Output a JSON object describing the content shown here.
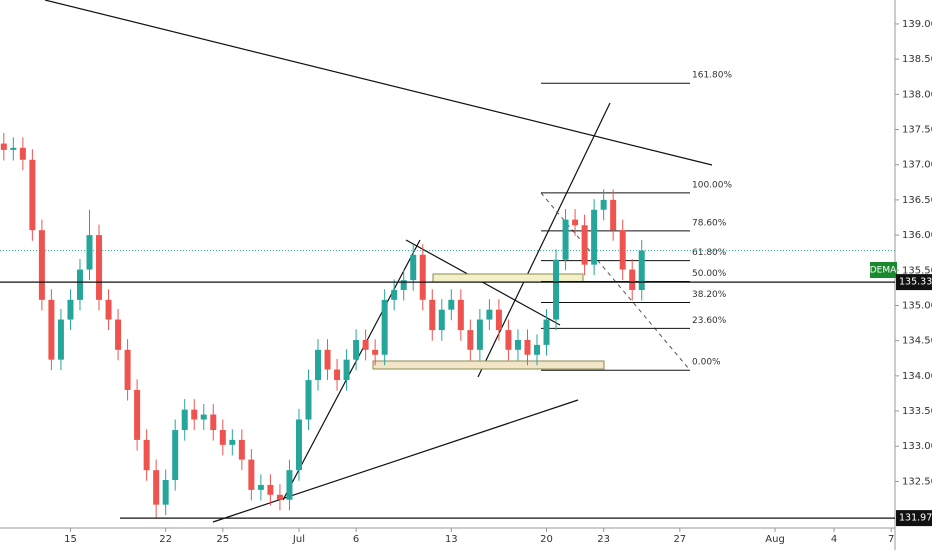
{
  "chart_data": {
    "type": "candlestick",
    "x": [
      -3.5,
      -3,
      -2.5,
      -2,
      -1.5,
      -1,
      -0.5,
      0,
      0.5,
      1,
      1.5,
      2,
      2.5,
      3,
      3.5,
      4,
      4.5,
      5,
      5.5,
      6,
      6.5,
      7,
      7.5,
      8,
      8.5,
      9,
      9.5,
      10,
      10.5,
      11,
      11.5,
      12,
      12.5,
      13,
      13.5,
      14,
      14.5,
      15,
      15.5,
      16,
      16.5,
      17,
      17.5,
      18,
      18.5,
      19,
      19.5,
      20,
      20.5,
      21,
      21.5,
      22,
      22.5,
      23,
      23.5,
      24,
      24.5,
      25,
      25.5,
      26,
      26.5,
      27,
      27.5,
      28,
      28.5,
      29,
      29.5,
      30
    ],
    "open": [
      137.3,
      137.21,
      137.24,
      137.07,
      136.07,
      135.08,
      134.23,
      134.8,
      135.08,
      135.51,
      136.0,
      135.08,
      134.8,
      134.37,
      133.8,
      133.09,
      132.66,
      132.17,
      132.52,
      133.23,
      133.52,
      133.38,
      133.45,
      133.23,
      133.02,
      133.09,
      132.81,
      132.38,
      132.45,
      132.31,
      132.24,
      132.66,
      133.38,
      133.94,
      134.37,
      134.09,
      133.94,
      134.23,
      134.51,
      134.37,
      134.3,
      135.08,
      135.22,
      135.36,
      135.72,
      135.08,
      134.65,
      134.94,
      135.08,
      134.65,
      134.37,
      134.8,
      134.94,
      134.65,
      134.37,
      134.51,
      134.3,
      134.44,
      134.8,
      135.65,
      136.22,
      136.14,
      135.58,
      136.36,
      136.5,
      136.07,
      135.51,
      135.22
    ],
    "high": [
      137.45,
      137.39,
      137.39,
      137.22,
      136.22,
      135.23,
      134.95,
      135.23,
      135.66,
      136.36,
      136.15,
      135.23,
      134.95,
      134.52,
      133.95,
      133.24,
      132.81,
      132.67,
      133.38,
      133.67,
      133.67,
      133.6,
      133.6,
      133.38,
      133.24,
      133.24,
      132.96,
      132.6,
      132.6,
      132.46,
      132.81,
      133.53,
      134.09,
      134.52,
      134.52,
      134.24,
      134.38,
      134.66,
      134.66,
      134.52,
      135.23,
      135.37,
      135.51,
      135.87,
      135.87,
      135.23,
      135.09,
      135.23,
      135.23,
      134.8,
      134.95,
      135.09,
      135.09,
      134.8,
      134.66,
      134.66,
      134.59,
      134.95,
      135.8,
      136.37,
      136.37,
      136.29,
      136.51,
      136.65,
      136.65,
      136.22,
      135.66,
      135.93
    ],
    "low": [
      137.06,
      137.06,
      136.92,
      135.92,
      134.93,
      134.08,
      134.08,
      134.65,
      134.93,
      135.36,
      134.93,
      134.65,
      134.22,
      133.65,
      132.94,
      132.51,
      131.98,
      132.02,
      132.37,
      133.08,
      133.23,
      133.23,
      133.08,
      132.87,
      132.87,
      132.66,
      132.23,
      132.23,
      132.16,
      132.09,
      132.09,
      132.51,
      133.23,
      133.79,
      133.94,
      133.79,
      133.79,
      134.08,
      134.22,
      134.15,
      134.15,
      134.93,
      135.07,
      135.21,
      134.93,
      134.5,
      134.5,
      134.79,
      134.5,
      134.22,
      134.22,
      134.65,
      134.5,
      134.22,
      134.22,
      134.15,
      134.15,
      134.29,
      134.65,
      135.5,
      135.99,
      135.43,
      135.43,
      136.21,
      135.92,
      135.36,
      135.07,
      135.07
    ],
    "close": [
      137.21,
      137.24,
      137.07,
      136.07,
      135.08,
      134.23,
      134.8,
      135.08,
      135.51,
      136.0,
      135.08,
      134.8,
      134.37,
      133.8,
      133.09,
      132.66,
      132.17,
      132.52,
      133.23,
      133.52,
      133.38,
      133.45,
      133.23,
      133.02,
      133.09,
      132.81,
      132.38,
      132.45,
      132.31,
      132.24,
      132.66,
      133.38,
      133.94,
      134.37,
      134.09,
      133.94,
      134.23,
      134.51,
      134.37,
      134.3,
      135.08,
      135.22,
      135.36,
      135.72,
      135.08,
      134.65,
      134.94,
      135.08,
      134.65,
      134.37,
      134.8,
      134.94,
      134.65,
      134.37,
      134.51,
      134.3,
      134.44,
      134.8,
      135.65,
      136.22,
      136.14,
      135.58,
      136.36,
      136.5,
      136.07,
      135.51,
      135.22,
      135.78
    ],
    "up_color": "#26a69a",
    "down_color": "#ef5350",
    "xlim": [
      -3.7,
      43.3
    ],
    "xticks": [
      {
        "value": 0,
        "label": "15"
      },
      {
        "value": 5,
        "label": "22"
      },
      {
        "value": 8,
        "label": "25"
      },
      {
        "value": 12,
        "label": "Jul"
      },
      {
        "value": 15,
        "label": "6"
      },
      {
        "value": 20,
        "label": "13"
      },
      {
        "value": 25,
        "label": "20"
      },
      {
        "value": 28,
        "label": "23"
      },
      {
        "value": 32,
        "label": "27"
      },
      {
        "value": 37,
        "label": "Aug"
      },
      {
        "value": 40.1,
        "label": "4"
      },
      {
        "value": 43.1,
        "label": "7"
      }
    ],
    "ylim": [
      131.81,
      139.34
    ],
    "yticks": [
      {
        "value": 132.5,
        "label": "132.500"
      },
      {
        "value": 133,
        "label": "133.000"
      },
      {
        "value": 133.5,
        "label": "133.500"
      },
      {
        "value": 134,
        "label": "134.000"
      },
      {
        "value": 134.5,
        "label": "134.500"
      },
      {
        "value": 135,
        "label": "135.000"
      },
      {
        "value": 135.5,
        "label": "135.500"
      },
      {
        "value": 136,
        "label": "136.000"
      },
      {
        "value": 136.5,
        "label": "136.500"
      },
      {
        "value": 137,
        "label": "137.000"
      },
      {
        "value": 137.5,
        "label": "137.500"
      },
      {
        "value": 138,
        "label": "138.000"
      },
      {
        "value": 138.5,
        "label": "138.500"
      },
      {
        "value": 139,
        "label": "139.000"
      }
    ],
    "price_lines": [
      135.332,
      131.979
    ],
    "indicator_label": "DEMA",
    "fibonacci": {
      "from": 134.08,
      "to": 136.6,
      "levels": [
        {
          "value": 0,
          "label": "0.00%"
        },
        {
          "value": 23.6,
          "label": "23.60%"
        },
        {
          "value": 38.2,
          "label": "38.20%"
        },
        {
          "value": 50,
          "label": "50.00%"
        },
        {
          "value": 61.8,
          "label": "61.80%"
        },
        {
          "value": 78.6,
          "label": "78.60%"
        },
        {
          "value": 100,
          "label": "100.00%"
        },
        {
          "value": 161.8,
          "label": "161.80%"
        }
      ]
    }
  }
}
